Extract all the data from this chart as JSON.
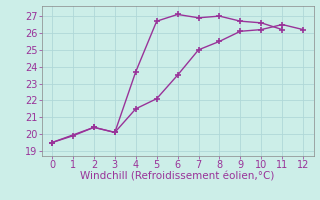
{
  "line1_x": [
    0,
    1,
    2,
    3,
    4,
    5,
    6,
    7,
    8,
    9,
    10,
    11
  ],
  "line1_y": [
    19.5,
    19.9,
    20.4,
    20.1,
    23.7,
    26.7,
    27.1,
    26.9,
    27.0,
    26.7,
    26.6,
    26.2
  ],
  "line2_x": [
    0,
    2,
    3,
    4,
    5,
    6,
    7,
    8,
    9,
    10,
    11,
    12
  ],
  "line2_y": [
    19.5,
    20.4,
    20.1,
    21.5,
    22.1,
    23.5,
    25.0,
    25.5,
    26.1,
    26.2,
    26.5,
    26.2
  ],
  "line_color": "#993399",
  "marker": "+",
  "markersize": 4,
  "markeredgewidth": 1.2,
  "linewidth": 1.0,
  "xlabel": "Windchill (Refroidissement éolien,°C)",
  "xlabel_color": "#993399",
  "xlabel_fontsize": 7.5,
  "ylabel_ticks": [
    19,
    20,
    21,
    22,
    23,
    24,
    25,
    26,
    27
  ],
  "xticks": [
    0,
    1,
    2,
    3,
    4,
    5,
    6,
    7,
    8,
    9,
    10,
    11,
    12
  ],
  "xlim": [
    -0.5,
    12.5
  ],
  "ylim": [
    18.7,
    27.6
  ],
  "bg_color": "#cceee8",
  "grid_color": "#b0d8d8",
  "tick_fontsize": 7,
  "tick_color": "#993399",
  "spine_color": "#888888"
}
